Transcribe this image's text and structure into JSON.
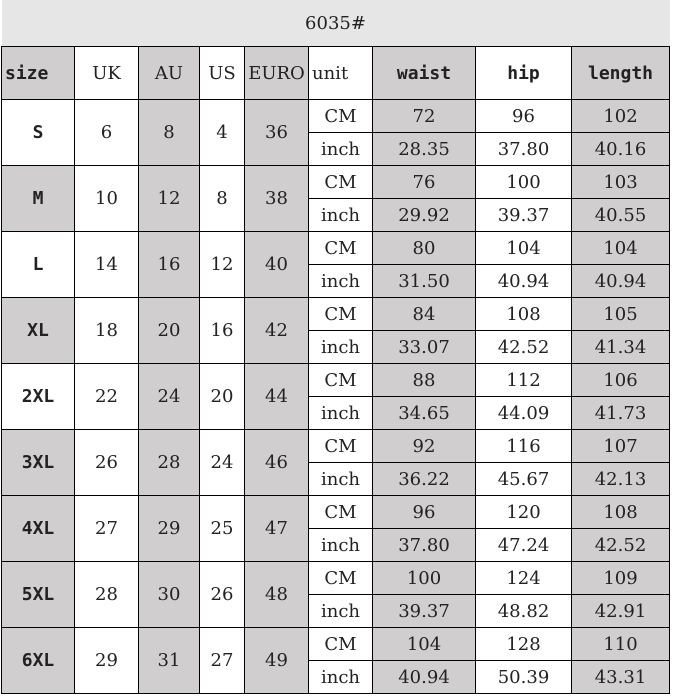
{
  "title": "6035#",
  "headers": [
    "size",
    "UK",
    "AU",
    "US",
    "EURO",
    "unit",
    "waist",
    "hip",
    "length"
  ],
  "rows": [
    {
      "size": "S",
      "uk": "6",
      "au": "8",
      "us": "4",
      "euro": "36",
      "cm": [
        "72",
        "96",
        "102"
      ],
      "inch": [
        "28.35",
        "37.80",
        "40.16"
      ]
    },
    {
      "size": "M",
      "uk": "10",
      "au": "12",
      "us": "8",
      "euro": "38",
      "cm": [
        "76",
        "100",
        "103"
      ],
      "inch": [
        "29.92",
        "39.37",
        "40.55"
      ]
    },
    {
      "size": "L",
      "uk": "14",
      "au": "16",
      "us": "12",
      "euro": "40",
      "cm": [
        "80",
        "104",
        "104"
      ],
      "inch": [
        "31.50",
        "40.94",
        "40.94"
      ]
    },
    {
      "size": "XL",
      "uk": "18",
      "au": "20",
      "us": "16",
      "euro": "42",
      "cm": [
        "84",
        "108",
        "105"
      ],
      "inch": [
        "33.07",
        "42.52",
        "41.34"
      ]
    },
    {
      "size": "2XL",
      "uk": "22",
      "au": "24",
      "us": "20",
      "euro": "44",
      "cm": [
        "88",
        "112",
        "106"
      ],
      "inch": [
        "34.65",
        "44.09",
        "41.73"
      ]
    },
    {
      "size": "3XL",
      "uk": "26",
      "au": "28",
      "us": "24",
      "euro": "46",
      "cm": [
        "92",
        "116",
        "107"
      ],
      "inch": [
        "36.22",
        "45.67",
        "42.13"
      ]
    },
    {
      "size": "4XL",
      "uk": "27",
      "au": "29",
      "us": "25",
      "euro": "47",
      "cm": [
        "96",
        "120",
        "108"
      ],
      "inch": [
        "37.80",
        "47.24",
        "42.52"
      ]
    },
    {
      "size": "5XL",
      "uk": "28",
      "au": "30",
      "us": "26",
      "euro": "48",
      "cm": [
        "100",
        "124",
        "109"
      ],
      "inch": [
        "39.37",
        "48.82",
        "42.91"
      ]
    },
    {
      "size": "6XL",
      "uk": "29",
      "au": "31",
      "us": "27",
      "euro": "49",
      "cm": [
        "104",
        "128",
        "110"
      ],
      "inch": [
        "40.94",
        "50.39",
        "43.31"
      ]
    }
  ],
  "units": {
    "cm": "CM",
    "inch": "inch"
  },
  "colors": {
    "shade": "#d0cece",
    "title_bg": "#e6e6e6"
  }
}
